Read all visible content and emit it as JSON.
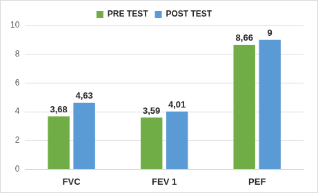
{
  "chart_data": {
    "type": "bar",
    "categories": [
      "FVC",
      "FEV 1",
      "PEF"
    ],
    "series": [
      {
        "name": "PRE TEST",
        "color": "#70ad47",
        "values": [
          3.68,
          3.59,
          8.66
        ],
        "value_labels": [
          "3,68",
          "3,59",
          "8,66"
        ]
      },
      {
        "name": "POST TEST",
        "color": "#5b9bd5",
        "values": [
          4.63,
          4.01,
          9
        ],
        "value_labels": [
          "4,63",
          "4,01",
          "9"
        ]
      }
    ],
    "ylim": [
      0,
      10
    ],
    "yticks": [
      0,
      2,
      4,
      6,
      8,
      10
    ],
    "grid": true,
    "legend": "top",
    "data_labels": true
  }
}
